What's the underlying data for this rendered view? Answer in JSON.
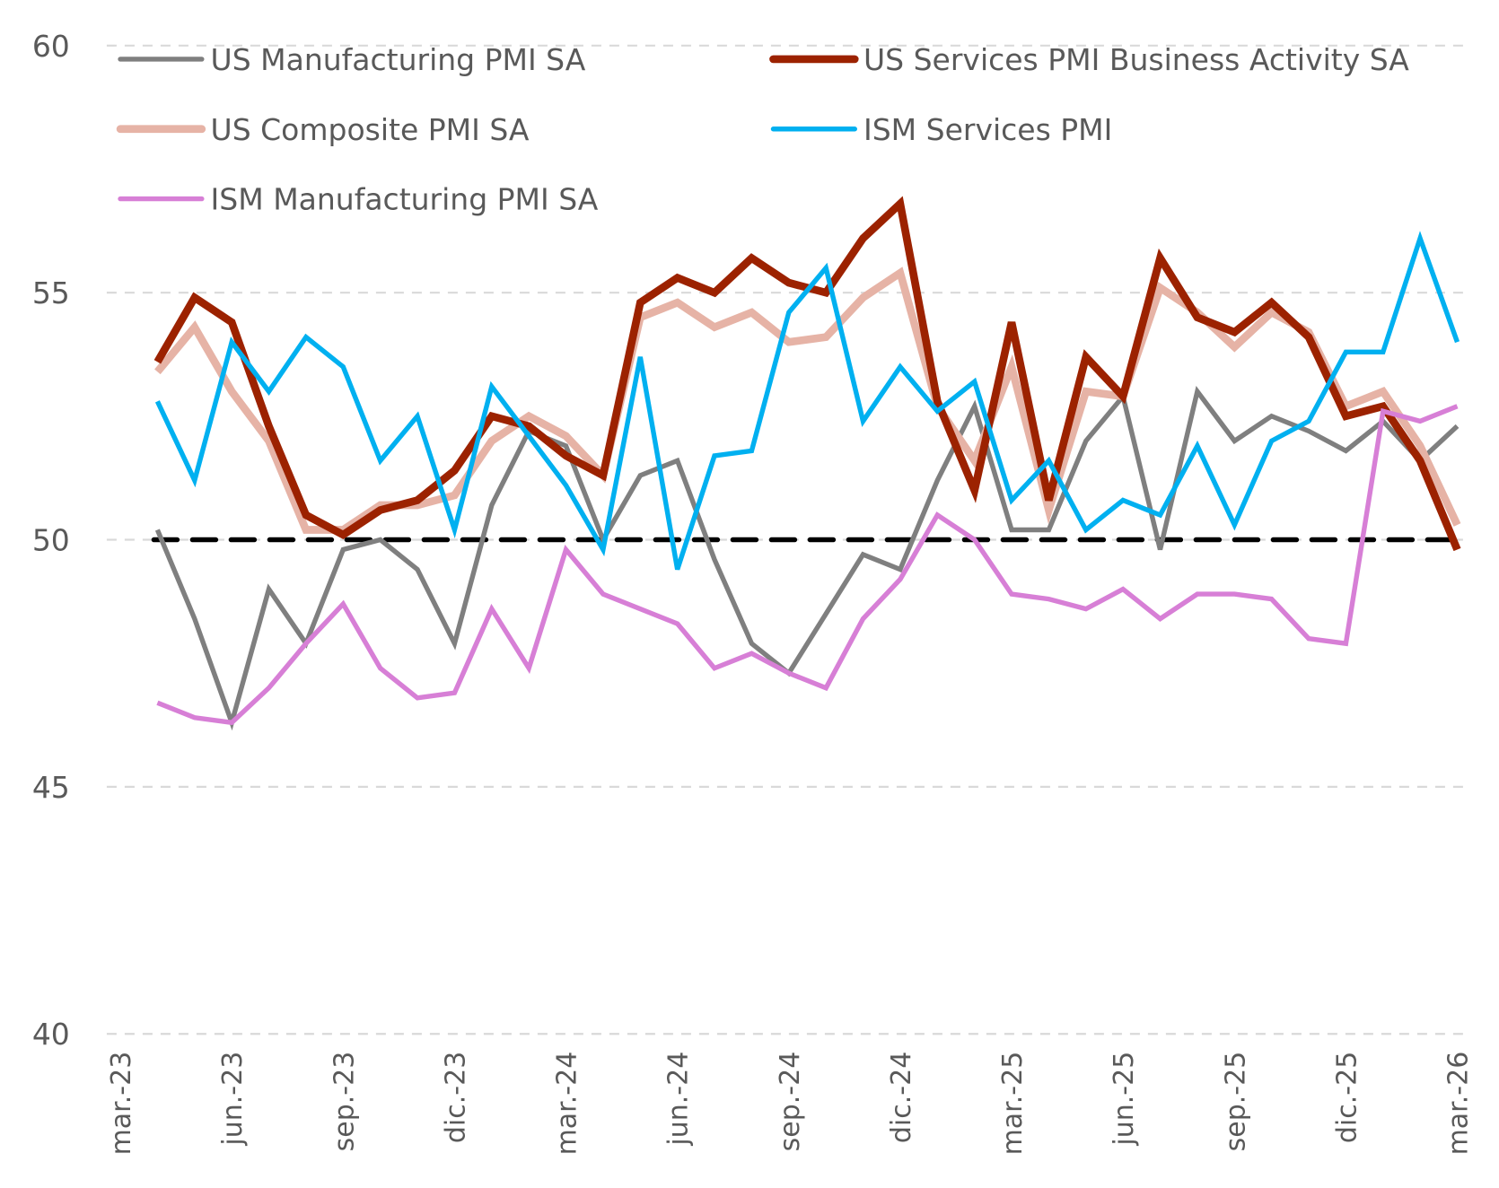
{
  "chart_data": {
    "type": "line",
    "title": "",
    "xlabel": "",
    "ylabel": "",
    "ylim": [
      40,
      60
    ],
    "yticks": [
      "40",
      "45",
      "50",
      "55",
      "60"
    ],
    "ytick_values": [
      40,
      45,
      50,
      55,
      60
    ],
    "grid": true,
    "legend_position": "top-left (two columns)",
    "x_start": "mar.-23",
    "x_end": "mar.-26",
    "xtick_labels": [
      "mar.-23",
      "jun.-23",
      "sep.-23",
      "dic.-23",
      "mar.-24",
      "jun.-24",
      "sep.-24",
      "dic.-24",
      "mar.-25",
      "jun.-25",
      "sep.-25",
      "dic.-25",
      "mar.-26"
    ],
    "x": [
      "abr.-23",
      "may.-23",
      "jun.-23",
      "jul.-23",
      "ago.-23",
      "sep.-23",
      "oct.-23",
      "nov.-23",
      "dic.-23",
      "ene.-24",
      "feb.-24",
      "mar.-24",
      "abr.-24",
      "may.-24",
      "jun.-24",
      "jul.-24",
      "ago.-24",
      "sep.-24",
      "oct.-24",
      "nov.-24",
      "dic.-24",
      "ene.-25",
      "feb.-25",
      "mar.-25",
      "abr.-25",
      "may.-25",
      "jun.-25",
      "jul.-25",
      "ago.-25",
      "sep.-25",
      "oct.-25",
      "nov.-25",
      "dic.-25",
      "ene.-26",
      "feb.-26",
      "mar.-26"
    ],
    "reference_line": {
      "value": 50,
      "style": "dashed",
      "color": "#000000"
    },
    "series": [
      {
        "name": "US Manufacturing PMI SA",
        "color": "#7f7f7f",
        "weight": "medium",
        "values": [
          50.2,
          48.4,
          46.3,
          49.0,
          47.9,
          49.8,
          50.0,
          49.4,
          47.9,
          50.7,
          52.2,
          51.9,
          50.0,
          51.3,
          51.6,
          49.6,
          47.9,
          47.3,
          48.5,
          49.7,
          49.4,
          51.2,
          52.7,
          50.2,
          50.2,
          52.0,
          52.9,
          49.8,
          53.0,
          52.0,
          52.5,
          52.2,
          51.8,
          52.4,
          51.6,
          52.3
        ]
      },
      {
        "name": "US Services PMI Business Activity SA",
        "color": "#9c2200",
        "weight": "thick",
        "values": [
          53.6,
          54.9,
          54.4,
          52.3,
          50.5,
          50.1,
          50.6,
          50.8,
          51.4,
          52.5,
          52.3,
          51.7,
          51.3,
          54.8,
          55.3,
          55.0,
          55.7,
          55.2,
          55.0,
          56.1,
          56.8,
          52.8,
          51.0,
          54.4,
          50.8,
          53.7,
          52.9,
          55.7,
          54.5,
          54.2,
          54.8,
          54.1,
          52.5,
          52.7,
          51.6,
          49.8
        ]
      },
      {
        "name": "US Composite PMI SA",
        "color": "#e6b3a6",
        "weight": "thick",
        "values": [
          53.4,
          54.3,
          53.0,
          52.0,
          50.2,
          50.2,
          50.7,
          50.7,
          50.9,
          52.0,
          52.5,
          52.1,
          51.3,
          54.5,
          54.8,
          54.3,
          54.6,
          54.0,
          54.1,
          54.9,
          55.4,
          52.7,
          51.6,
          53.5,
          50.6,
          53.0,
          52.9,
          55.1,
          54.6,
          53.9,
          54.6,
          54.2,
          52.7,
          53.0,
          51.9,
          50.3
        ]
      },
      {
        "name": "ISM Services PMI",
        "color": "#00b0f0",
        "weight": "medium",
        "values": [
          52.8,
          51.2,
          54.0,
          53.0,
          54.1,
          53.5,
          51.6,
          52.5,
          50.2,
          53.1,
          52.1,
          51.1,
          49.8,
          53.7,
          49.4,
          51.7,
          51.8,
          54.6,
          55.5,
          52.4,
          53.5,
          52.6,
          53.2,
          50.8,
          51.6,
          50.2,
          50.8,
          50.5,
          51.9,
          50.3,
          52.0,
          52.4,
          53.8,
          53.8,
          56.1,
          54.0
        ]
      },
      {
        "name": "ISM Manufacturing PMI SA",
        "color": "#d77fd6",
        "weight": "medium",
        "values": [
          46.7,
          46.4,
          46.3,
          47.0,
          47.9,
          48.7,
          47.4,
          46.8,
          46.9,
          48.6,
          47.4,
          49.8,
          48.9,
          48.6,
          48.3,
          47.4,
          47.7,
          47.3,
          47.0,
          48.4,
          49.2,
          50.5,
          50.0,
          48.9,
          48.8,
          48.6,
          49.0,
          48.4,
          48.9,
          48.9,
          48.8,
          48.0,
          47.9,
          52.6,
          52.4,
          52.7
        ]
      }
    ],
    "legend": [
      {
        "label": "US Manufacturing PMI SA",
        "series_index": 0
      },
      {
        "label": "US Services PMI Business Activity SA",
        "series_index": 1
      },
      {
        "label": "US Composite PMI SA",
        "series_index": 2
      },
      {
        "label": "ISM Services PMI",
        "series_index": 3
      },
      {
        "label": "ISM Manufacturing PMI SA",
        "series_index": 4
      }
    ]
  }
}
